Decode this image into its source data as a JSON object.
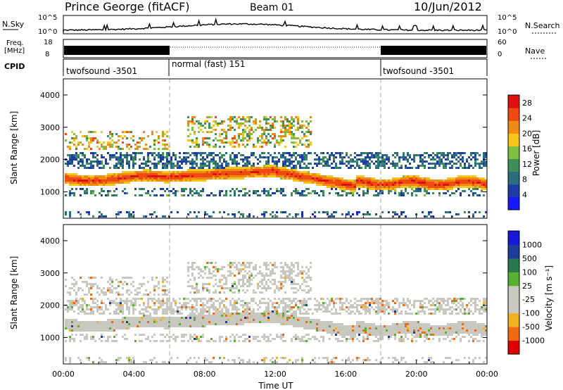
{
  "header": {
    "title": "Prince George (fitACF)",
    "beam": "Beam 01",
    "date": "10/Jun/2012"
  },
  "strips": {
    "nsky_label": "N.Sky",
    "nsky_ticks": [
      "10^5",
      "10^0"
    ],
    "nsearch_label": "N.Search",
    "nsearch_ticks": [
      "10^5",
      "10^0"
    ],
    "freq_label_1": "Freq.",
    "freq_label_2": "[MHz]",
    "freq_ticks": [
      "18",
      "8"
    ],
    "nave_ticks": [
      "60",
      "0"
    ],
    "nave_label": "Nave",
    "cpid_label": "CPID"
  },
  "cpid_segments": [
    {
      "label": "twofsound -3501",
      "start_hour": 0,
      "end_hour": 6
    },
    {
      "label": "normal (fast) 151",
      "start_hour": 6,
      "end_hour": 18
    },
    {
      "label": "twofsound -3501",
      "start_hour": 18,
      "end_hour": 24
    }
  ],
  "colors": {
    "power_scale": [
      "#1818ff",
      "#1e3ca8",
      "#2a6c80",
      "#3f8e5a",
      "#7fbf3f",
      "#f5c518",
      "#f08a12",
      "#ef4a10",
      "#e01010"
    ],
    "velocity_scale": [
      "#e00000",
      "#ef6a10",
      "#f0b020",
      "#c8c8c0",
      "#c8c8c0",
      "#58b030",
      "#2a7a50",
      "#1e3c9c",
      "#1818d8"
    ]
  },
  "chart_data": [
    {
      "type": "heatmap",
      "title": "",
      "xlabel": "Time UT",
      "ylabel": "Slant Range [km]",
      "xlim": [
        0,
        24
      ],
      "ylim": [
        180,
        4500
      ],
      "xticks": [
        "00:00",
        "04:00",
        "08:00",
        "12:00",
        "16:00",
        "20:00",
        "00:00"
      ],
      "yticks": [
        "1000",
        "2000",
        "3000",
        "4000"
      ],
      "colorbar": {
        "label": "Power [dB]",
        "ticks": [
          "4",
          "8",
          "12",
          "16",
          "20",
          "24",
          "28"
        ],
        "range": [
          0,
          30
        ]
      },
      "bands": [
        {
          "start_hour": 0,
          "end_hour": 6,
          "range_km": [
            1300,
            1600
          ],
          "level_db": 24
        },
        {
          "start_hour": 6,
          "end_hour": 12,
          "range_km": [
            1400,
            1700
          ],
          "level_db": 26
        },
        {
          "start_hour": 12,
          "end_hour": 16,
          "range_km": [
            1200,
            1500
          ],
          "level_db": 22
        },
        {
          "start_hour": 0,
          "end_hour": 24,
          "range_km": [
            1800,
            2200
          ],
          "level_db": 6
        },
        {
          "start_hour": 8,
          "end_hour": 14,
          "range_km": [
            2600,
            3300
          ],
          "level_db": 16
        }
      ]
    },
    {
      "type": "heatmap",
      "title": "",
      "xlabel": "Time UT",
      "ylabel": "Slant Range [km]",
      "xlim": [
        0,
        24
      ],
      "ylim": [
        180,
        4500
      ],
      "xticks": [
        "00:00",
        "04:00",
        "08:00",
        "12:00",
        "16:00",
        "20:00",
        "00:00"
      ],
      "yticks": [
        "1000",
        "2000",
        "3000",
        "4000"
      ],
      "colorbar": {
        "label": "Velocity [m s⁻¹]",
        "ticks": [
          "1000",
          "500",
          "100",
          "25",
          "-25",
          "-100",
          "-500",
          "-1000"
        ]
      }
    }
  ]
}
